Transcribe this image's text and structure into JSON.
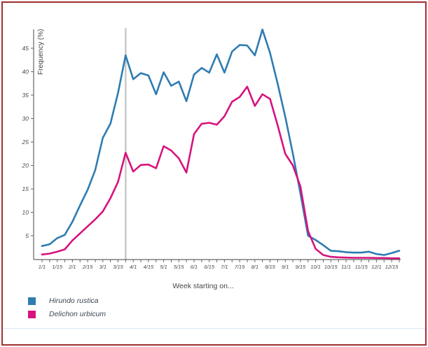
{
  "frame": {
    "border_color": "#a03030",
    "divider_color": "#d9e6f2"
  },
  "chart_data": {
    "type": "line",
    "title": "",
    "xlabel": "Week starting on...",
    "ylabel": "Frequency (%)",
    "grid": false,
    "legend_position": "bottom-left",
    "ylim": [
      0,
      50
    ],
    "y_ticks": [
      5,
      10,
      15,
      20,
      25,
      30,
      35,
      40,
      45
    ],
    "x_weeks": [
      "1/1",
      "1/8",
      "1/15",
      "1/22",
      "2/1",
      "2/8",
      "2/15",
      "2/22",
      "3/1",
      "3/8",
      "3/15",
      "3/22",
      "4/1",
      "4/8",
      "4/15",
      "4/22",
      "5/1",
      "5/8",
      "5/15",
      "5/22",
      "6/1",
      "6/8",
      "6/15",
      "6/22",
      "7/1",
      "7/8",
      "7/15",
      "7/22",
      "8/1",
      "8/8",
      "8/15",
      "8/22",
      "9/1",
      "9/8",
      "9/15",
      "9/22",
      "10/1",
      "10/8",
      "10/15",
      "10/22",
      "11/1",
      "11/8",
      "11/15",
      "11/22",
      "12/1",
      "12/8",
      "12/15",
      "12/22"
    ],
    "x_tick_labels": [
      "1/1",
      "1/15",
      "2/1",
      "2/15",
      "3/1",
      "3/15",
      "4/1",
      "4/15",
      "5/1",
      "5/15",
      "6/1",
      "6/15",
      "7/1",
      "7/15",
      "8/1",
      "8/15",
      "9/1",
      "9/15",
      "10/1",
      "10/15",
      "11/1",
      "11/15",
      "12/1",
      "12/15"
    ],
    "marker_line": {
      "week": "3/22",
      "index": 11,
      "color": "#c9c9c9"
    },
    "series": [
      {
        "name": "Hirundo rustica",
        "color": "#2e7cb2",
        "values": [
          2.8,
          3.2,
          4.5,
          5.2,
          8,
          11.5,
          14.8,
          19,
          25.9,
          28.9,
          35.5,
          43.5,
          38.4,
          39.7,
          39.2,
          35.2,
          39.9,
          37,
          37.9,
          33.7,
          39.4,
          40.8,
          39.8,
          43.7,
          39.8,
          44.3,
          45.7,
          45.6,
          43.5,
          49,
          44,
          37.5,
          30.4,
          22.5,
          14,
          5,
          4.1,
          3.0,
          1.8,
          1.7,
          1.5,
          1.4,
          1.4,
          1.6,
          1.1,
          0.9,
          1.3,
          1.8
        ]
      },
      {
        "name": "Delichon urbicum",
        "color": "#d6137e",
        "values": [
          1.0,
          1.2,
          1.6,
          2.1,
          4.0,
          5.5,
          7.0,
          8.5,
          10.2,
          13.0,
          16.5,
          22.7,
          18.7,
          20.1,
          20.2,
          19.4,
          24.1,
          23.2,
          21.5,
          18.5,
          26.7,
          28.9,
          29.1,
          28.7,
          30.5,
          33.6,
          34.6,
          36.8,
          32.7,
          35.2,
          34.2,
          28.6,
          22.5,
          20,
          15.5,
          6,
          2.2,
          0.9,
          0.5,
          0.4,
          0.35,
          0.3,
          0.3,
          0.3,
          0.25,
          0.25,
          0.2,
          0.2
        ]
      }
    ]
  }
}
